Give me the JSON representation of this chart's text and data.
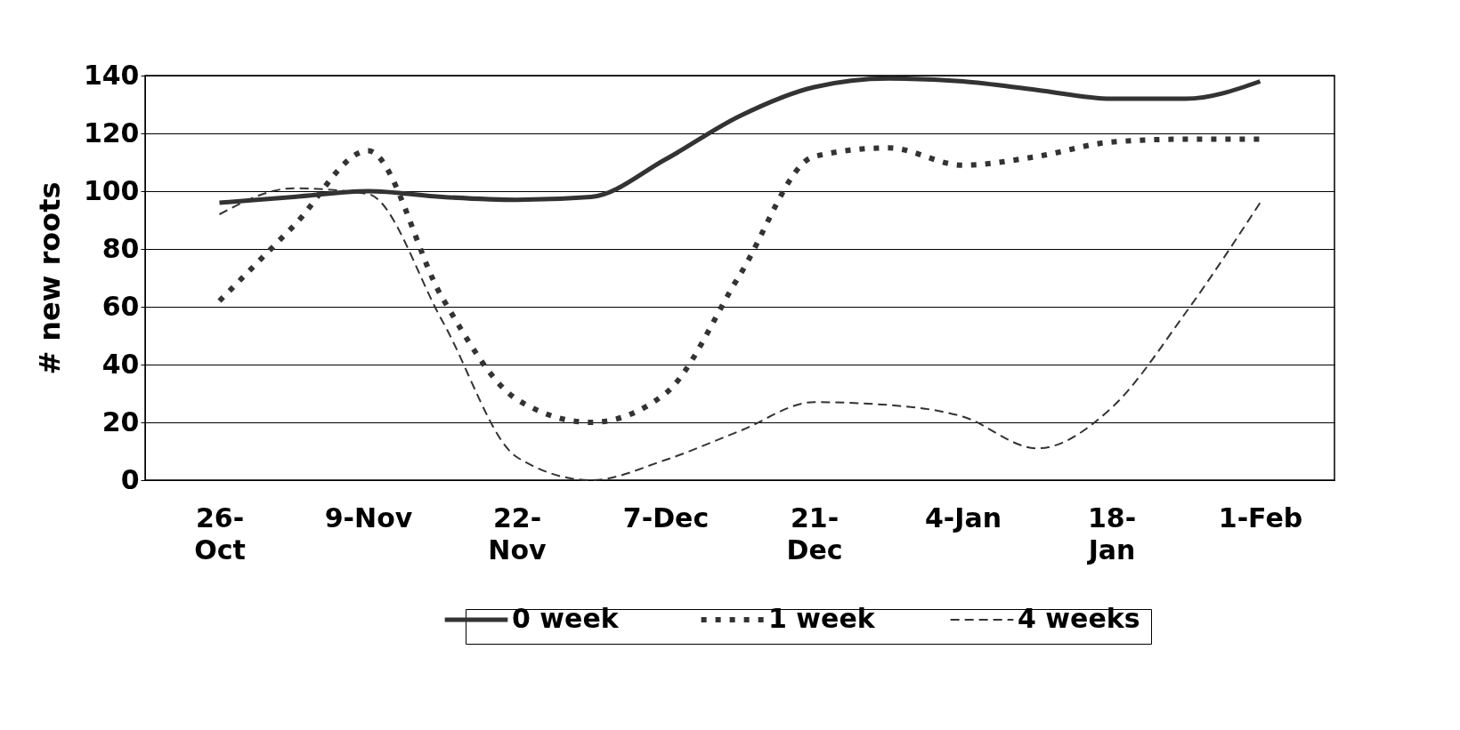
{
  "chart_data": {
    "type": "line",
    "ylabel": "# new roots",
    "categories": [
      "26-Oct",
      null,
      "9-Nov",
      null,
      "22-Nov",
      null,
      "7-Dec",
      null,
      "21-Dec",
      null,
      "4-Jan",
      null,
      "18-Jan",
      null,
      "1-Feb"
    ],
    "ylim": [
      0,
      140
    ],
    "yticks": [
      0,
      20,
      40,
      60,
      80,
      100,
      120,
      140
    ],
    "grid": "y",
    "legend": "bottom",
    "marker": "none",
    "series": [
      {
        "name": "0 week",
        "color": "#333333",
        "line_style": "solid",
        "values": [
          96,
          98,
          100,
          98,
          97,
          98,
          111,
          126,
          136,
          139,
          138,
          135,
          132,
          132,
          138
        ]
      },
      {
        "name": "1 week",
        "color": "#333333",
        "line_style": "dotted",
        "values": [
          62,
          88,
          114,
          63,
          28,
          20,
          30,
          71,
          112,
          115,
          109,
          112,
          117,
          118,
          118
        ]
      },
      {
        "name": "4 weeks",
        "color": "#333333",
        "line_style": "dashed",
        "values": [
          92,
          101,
          99,
          55,
          8,
          0,
          7,
          17,
          27,
          26,
          22,
          11,
          25,
          58,
          96
        ]
      }
    ]
  }
}
